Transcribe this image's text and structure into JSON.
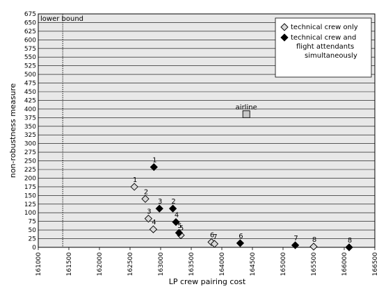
{
  "chart_data": {
    "type": "scatter",
    "xlabel": "LP crew pairing cost",
    "ylabel": "non-robustness measure",
    "xlim": [
      161000,
      166500
    ],
    "ylim": [
      0,
      675
    ],
    "x_ticks": [
      161000,
      161500,
      162000,
      162500,
      163000,
      163500,
      164000,
      164500,
      165000,
      165500,
      166000,
      166500
    ],
    "y_ticks": [
      0,
      25,
      50,
      75,
      100,
      125,
      150,
      175,
      200,
      225,
      250,
      275,
      300,
      325,
      350,
      375,
      400,
      425,
      450,
      475,
      500,
      525,
      550,
      575,
      600,
      625,
      650,
      675
    ],
    "grid": "horizontal",
    "legend_position": "top-right",
    "colors": {
      "background": "#e8e8e8",
      "technical": "#d8d8d8",
      "joint": "#000000",
      "airline": "#c8c8c8"
    },
    "series": [
      {
        "name": "technical crew only",
        "marker": "hollow-diamond",
        "points": [
          {
            "x": 162570,
            "y": 175,
            "label": "1"
          },
          {
            "x": 162750,
            "y": 140,
            "label": "2"
          },
          {
            "x": 162800,
            "y": 83,
            "label": "3"
          },
          {
            "x": 162880,
            "y": 52,
            "label": "4"
          },
          {
            "x": 163330,
            "y": 35,
            "label": "5"
          },
          {
            "x": 163830,
            "y": 15,
            "label": "6"
          },
          {
            "x": 163880,
            "y": 10,
            "label": "7"
          },
          {
            "x": 165500,
            "y": 2,
            "label": "8"
          }
        ]
      },
      {
        "name": "technical crew and flight attendants simultaneously",
        "marker": "filled-diamond",
        "points": [
          {
            "x": 162890,
            "y": 232,
            "label": "1"
          },
          {
            "x": 163200,
            "y": 112,
            "label": "2"
          },
          {
            "x": 162980,
            "y": 112,
            "label": "3"
          },
          {
            "x": 163250,
            "y": 73,
            "label": "4"
          },
          {
            "x": 163300,
            "y": 42,
            "label": "5"
          },
          {
            "x": 164300,
            "y": 12,
            "label": "6"
          },
          {
            "x": 165200,
            "y": 6,
            "label": "7"
          },
          {
            "x": 166080,
            "y": 0,
            "label": "8"
          }
        ]
      }
    ],
    "annotations": [
      {
        "type": "square",
        "x": 164400,
        "y": 385,
        "text": "airline"
      },
      {
        "type": "vline",
        "x": 161400,
        "text": "lower bound"
      }
    ]
  }
}
